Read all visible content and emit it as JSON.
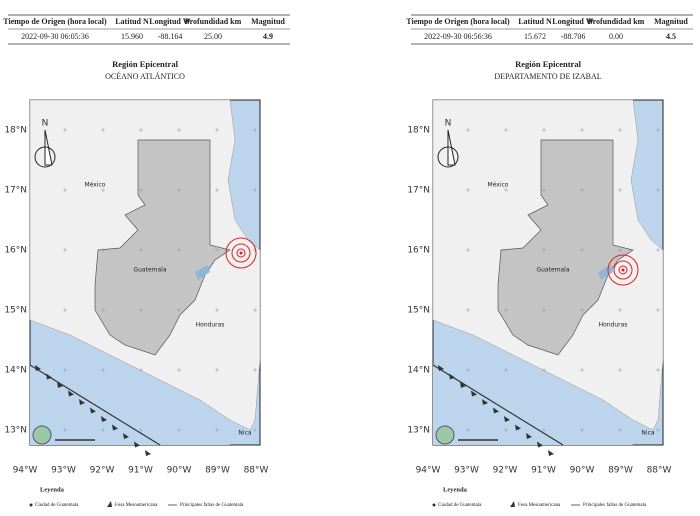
{
  "panels": [
    {
      "table": {
        "headers": [
          "Tiempo de Origen (hora local)",
          "Latitud N",
          "Longitud W",
          "Profundidad km",
          "Magnitud"
        ],
        "row": [
          "2022-09-30 06:05:36",
          "15.960",
          "-88.164",
          "25.00",
          "4.9"
        ]
      },
      "region_title": "Región Epicentral",
      "region_name": "OCÉANO ATLÁNTICO"
    },
    {
      "table": {
        "headers": [
          "Tiempo de Origen (hora local)",
          "Latitud N",
          "Longitud W",
          "Profundidad km",
          "Magnitud"
        ],
        "row": [
          "2022-09-30 06:56:36",
          "15.672",
          "-88.706",
          "0.00",
          "4.5"
        ]
      },
      "region_title": "Región Epicentral",
      "region_name": "DEPARTAMENTO DE IZABAL"
    }
  ],
  "map": {
    "lat_labels": [
      "18°N",
      "17°N",
      "16°N",
      "15°N",
      "14°N",
      "13°N"
    ],
    "lon_labels": [
      "94°W",
      "93°W",
      "92°W",
      "91°W",
      "90°W",
      "89°W",
      "88°W"
    ],
    "places": [
      "México",
      "Guatemala",
      "Honduras",
      "Nica"
    ],
    "north": "N"
  },
  "legend": {
    "title": "Leyenda",
    "items": [
      "Ciudad de Guatemala",
      "Fosa Mesoamericana",
      "Principales fallas de Guatemala"
    ]
  }
}
